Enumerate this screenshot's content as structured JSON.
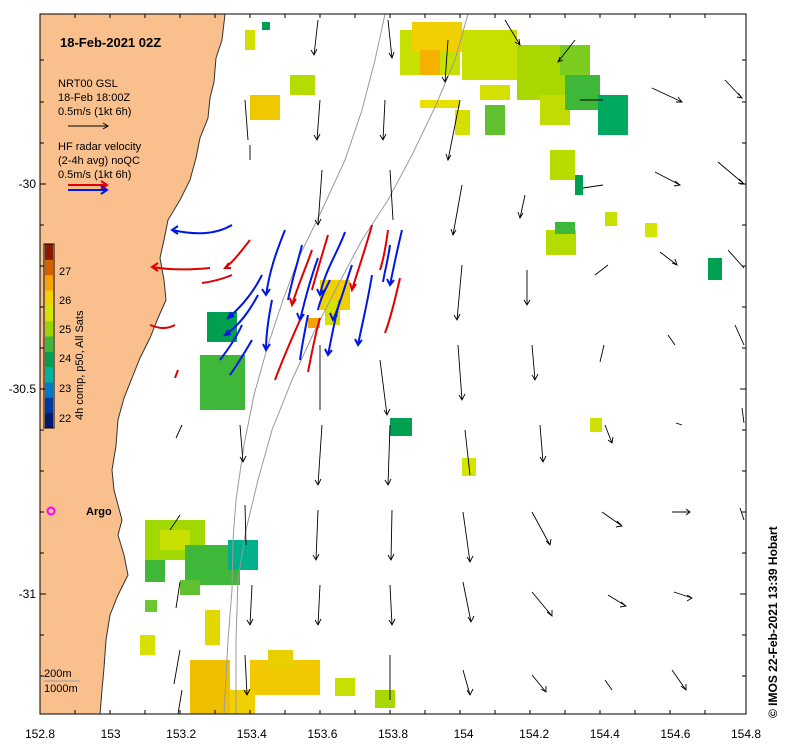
{
  "title": "18-Feb-2021 02Z",
  "legend": {
    "gsl_title": "NRT00 GSL",
    "gsl_date": "18-Feb 18:00Z",
    "gsl_scale": "0.5m/s (1kt 6h)",
    "hf_title": "HF radar velocity",
    "hf_avg": "(2-4h avg) noQC",
    "hf_scale": "0.5m/s (1kt 6h)"
  },
  "colorbar": {
    "label": "4h comp, p50, All Sats",
    "ticks": [
      "27",
      "26",
      "25",
      "24",
      "23",
      "22"
    ],
    "colors": [
      "#8b1a00",
      "#d65f00",
      "#f5a300",
      "#f0d000",
      "#d4e600",
      "#9ad400",
      "#3fb83a",
      "#00a050",
      "#00b49b",
      "#0078c8",
      "#0037a0",
      "#001a6e"
    ]
  },
  "x_ticks": [
    "152.8",
    "153",
    "153.2",
    "153.4",
    "153.6",
    "153.8",
    "154",
    "154.2",
    "154.4",
    "154.6",
    "154.8"
  ],
  "y_ticks": [
    "-30",
    "-30.5",
    "-31"
  ],
  "argo_label": "Argo",
  "isobaths": {
    "label_a": "200m",
    "label_b": "1000m"
  },
  "credit": "© IMOS 22-Feb-2021 13:39 Hobart",
  "colors": {
    "land": "#f9c08e",
    "current_red": "#e00000",
    "current_blue": "#0018e0",
    "argo": "#ff00ff"
  }
}
